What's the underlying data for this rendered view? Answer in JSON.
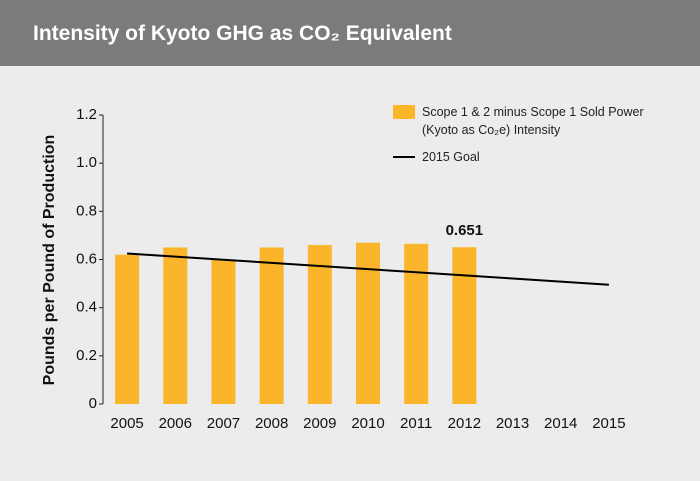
{
  "chart_data": {
    "type": "bar",
    "title": "Intensity of Kyoto GHG as CO₂ Equivalent",
    "y_label": "Pounds per Pound of Production",
    "categories": [
      "2005",
      "2006",
      "2007",
      "2008",
      "2009",
      "2010",
      "2011",
      "2012",
      "2013",
      "2014",
      "2015"
    ],
    "series": [
      {
        "name": "Scope 1 & 2 minus Scope 1 Sold Power (Kyoto as Co₂e) Intensity",
        "type": "bar",
        "color": "#fbb52b",
        "values": [
          0.62,
          0.65,
          0.6,
          0.65,
          0.66,
          0.67,
          0.665,
          0.651,
          null,
          null,
          null
        ],
        "value_labels": [
          null,
          null,
          null,
          null,
          null,
          null,
          null,
          "0.651",
          null,
          null,
          null
        ]
      },
      {
        "name": "2015 Goal",
        "type": "line",
        "color": "#000000",
        "values": [
          0.625,
          0.612,
          0.599,
          0.586,
          0.573,
          0.56,
          0.547,
          0.534,
          0.521,
          0.508,
          0.495
        ]
      }
    ],
    "ylim": [
      0,
      1.2
    ],
    "yticks": [
      0,
      0.2,
      0.4,
      0.6,
      0.8,
      {
        "value": 1,
        "label": "1.0"
      },
      1.2
    ],
    "grid": false,
    "legend": "top-right"
  }
}
